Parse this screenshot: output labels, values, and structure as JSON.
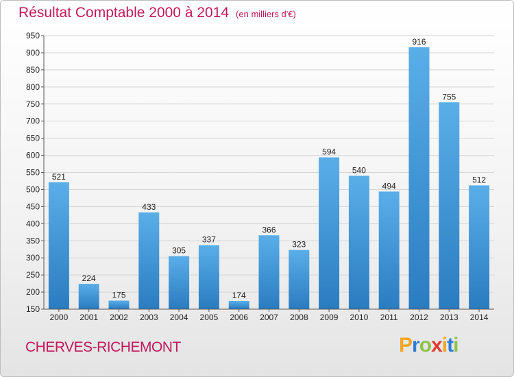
{
  "title": "Résultat Comptable 2000 à 2014",
  "subtitle": "(en milliers d'€)",
  "commune": "CHERVES-RICHEMONT",
  "logo": {
    "letters": [
      "P",
      "r",
      "o",
      "x",
      "i",
      "t",
      "i"
    ],
    "colors": [
      "#f5a623",
      "#2e7bd6",
      "#8bc34a",
      "#e53935",
      "#f5a623",
      "#2e7bd6",
      "#8bc34a"
    ]
  },
  "colors": {
    "title": "#c2185b",
    "bar_top": "#5aaee8",
    "bar_bottom": "#2a7cc0"
  },
  "chart_data": {
    "type": "bar",
    "title": "Résultat Comptable 2000 à 2014",
    "xlabel": "",
    "ylabel": "",
    "categories": [
      "2000",
      "2001",
      "2002",
      "2003",
      "2004",
      "2005",
      "2006",
      "2007",
      "2008",
      "2009",
      "2010",
      "2011",
      "2012",
      "2013",
      "2014"
    ],
    "values": [
      521,
      224,
      175,
      433,
      305,
      337,
      174,
      366,
      323,
      594,
      540,
      494,
      916,
      755,
      512
    ],
    "ylim": [
      150,
      950
    ],
    "yticks": [
      150,
      200,
      250,
      300,
      350,
      400,
      450,
      500,
      550,
      600,
      650,
      700,
      750,
      800,
      850,
      900,
      950
    ],
    "grid": true,
    "legend": "none"
  }
}
